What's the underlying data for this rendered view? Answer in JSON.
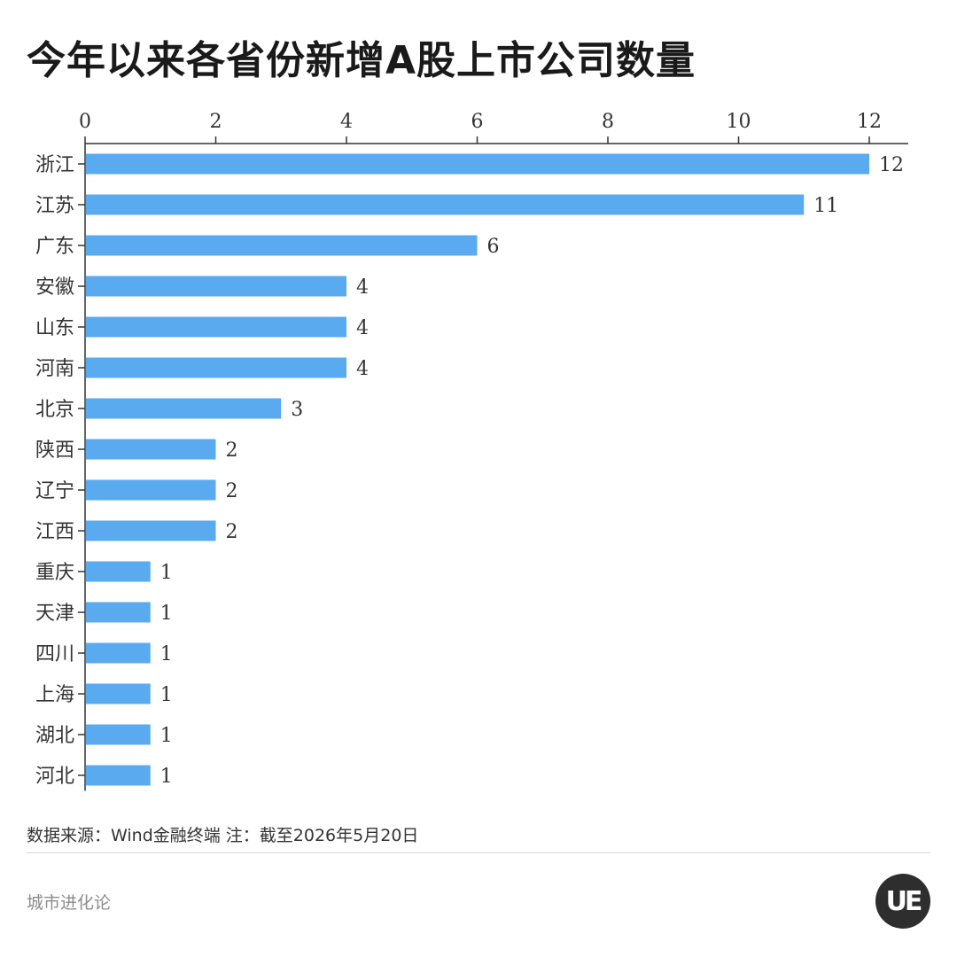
{
  "title": "今年以来各省份新增A股上市公司数量",
  "footer": {
    "source": "数据来源：Wind金融终端 注：截至2026年5月20日",
    "brand": "城市进化论",
    "logo_text": "UE"
  },
  "colors": {
    "bar": "#5aaaf0",
    "axis": "#333333",
    "text": "#333333"
  },
  "chart_data": {
    "type": "bar",
    "orientation": "horizontal",
    "x_axis_position": "top",
    "xlim": [
      0,
      12.6
    ],
    "xticks": [
      0,
      2,
      4,
      6,
      8,
      10,
      12
    ],
    "grid": false,
    "categories": [
      "浙江",
      "江苏",
      "广东",
      "安徽",
      "山东",
      "河南",
      "北京",
      "陕西",
      "辽宁",
      "江西",
      "重庆",
      "天津",
      "四川",
      "上海",
      "湖北",
      "河北"
    ],
    "values": [
      12,
      11,
      6,
      4,
      4,
      4,
      3,
      2,
      2,
      2,
      1,
      1,
      1,
      1,
      1,
      1
    ],
    "data_labels": true
  }
}
